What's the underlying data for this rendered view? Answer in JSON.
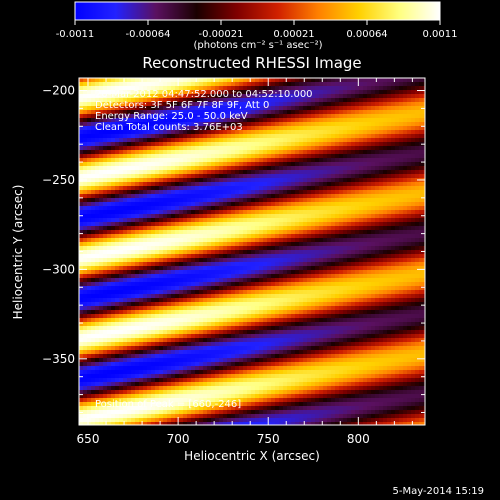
{
  "colorbar": {
    "ticks": [
      "-0.0011",
      "-0.00064",
      "-0.00021",
      "0.00021",
      "0.00064",
      "0.0011"
    ],
    "units_label": "(photons cm⁻² s⁻¹ asec⁻²)",
    "stops": [
      "#0000ff",
      "#2222ff",
      "#5a1060",
      "#1a0000",
      "#800000",
      "#d02000",
      "#ff8000",
      "#ffd000",
      "#ffff80",
      "#ffffff"
    ]
  },
  "info": {
    "time_range": "20-Mar-2012 04:47:52.000 to 04:52:10.000",
    "detectors": "Detectors: 3F 5F 6F 7F 8F 9F, Att 0",
    "energy": "Energy Range: 25.0 - 50.0 keV",
    "clean": "Clean     Total counts: 3.76E+03",
    "peak": "Position of Peak = [660,-246]"
  },
  "footer": {
    "date": "5-May-2014 15:19"
  },
  "chart_data": {
    "type": "heatmap",
    "title": "Reconstructed RHESSI Image",
    "xlabel": "Heliocentric X (arcsec)",
    "ylabel": "Heliocentric Y (arcsec)",
    "xlim": [
      645,
      837
    ],
    "ylim": [
      -387,
      -193
    ],
    "x_ticks": [
      650,
      700,
      750,
      800
    ],
    "y_ticks": [
      -200,
      -250,
      -300,
      -350
    ],
    "value_range": [
      -0.0011,
      0.0011
    ],
    "pattern": {
      "description_free_params": true,
      "stripe_period_arcsec": 45,
      "stripe_slope": 0.19,
      "peak_x": 660,
      "peak_y": -246
    }
  }
}
